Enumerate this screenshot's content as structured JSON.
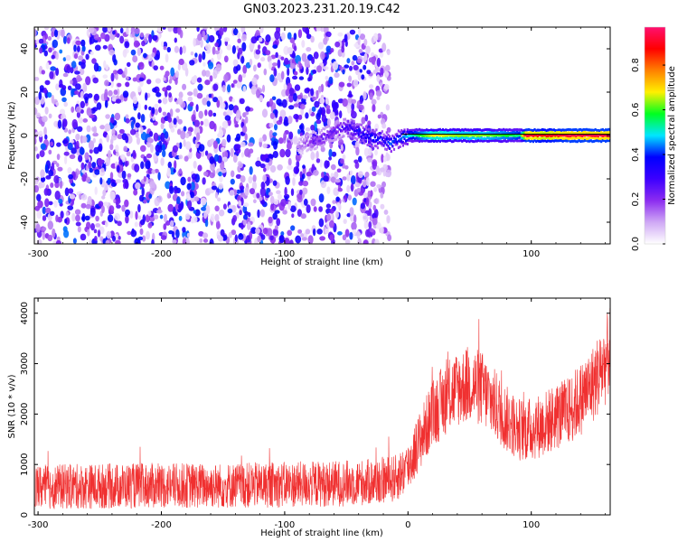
{
  "title": "GN03.2023.231.20.19.C42",
  "chart_data": [
    {
      "type": "heatmap",
      "xlabel": "Height of straight line (km)",
      "ylabel": "Frequency (Hz)",
      "xlim": [
        -303,
        164
      ],
      "ylim": [
        -50,
        50
      ],
      "x_ticks": [
        -300,
        -200,
        -100,
        0,
        100
      ],
      "x_tick_labels": [
        "-300",
        "-200",
        "-100",
        "0",
        "100"
      ],
      "y_ticks": [
        -40,
        -20,
        0,
        20,
        40
      ],
      "y_tick_labels": [
        "-40",
        "-20",
        "0",
        "20",
        "40"
      ],
      "colorbar": {
        "label": "Normalized spectral amplitude",
        "range": [
          0,
          0.97
        ],
        "ticks": [
          0,
          0.2,
          0.4,
          0.6,
          0.8
        ],
        "tick_labels": [
          "0.0",
          "0.2",
          "0.4",
          "0.6",
          "0.8"
        ],
        "colors": [
          "#ffffff",
          "#cfa8f5",
          "#8c2cf0",
          "#3c00ff",
          "#0000ff",
          "#00e6ff",
          "#00ff20",
          "#fff000",
          "#ff8000",
          "#ff0000",
          "#ff1070"
        ]
      },
      "noise_region": {
        "x_range": [
          -303,
          -15
        ],
        "freq_range": [
          -50,
          50
        ],
        "level": 0.15
      },
      "signal_track": {
        "x": [
          -90,
          -80,
          -70,
          -60,
          -50,
          -40,
          -30,
          -20,
          -15,
          -10,
          0,
          10,
          20,
          40,
          60,
          80,
          90,
          95,
          110,
          130,
          150,
          164
        ],
        "freq": [
          -5,
          -3,
          -1,
          2,
          4,
          1,
          -1,
          -2,
          -4,
          -2,
          0,
          0,
          0,
          0,
          0,
          0,
          0,
          0,
          0,
          0,
          0,
          0
        ],
        "amplitude": [
          0.12,
          0.2,
          0.25,
          0.25,
          0.3,
          0.35,
          0.4,
          0.35,
          0.45,
          0.4,
          0.5,
          0.6,
          0.7,
          0.65,
          0.65,
          0.6,
          0.55,
          0.95,
          0.9,
          0.95,
          0.95,
          0.95
        ]
      }
    },
    {
      "type": "line",
      "xlabel": "Height of straight line (km)",
      "ylabel": "SNR (10 * v/v)",
      "xlim": [
        -303,
        164
      ],
      "ylim": [
        0,
        4300
      ],
      "x_ticks": [
        -300,
        -200,
        -100,
        0,
        100
      ],
      "x_tick_labels": [
        "-300",
        "-200",
        "-100",
        "0",
        "100"
      ],
      "y_ticks": [
        0,
        1000,
        2000,
        3000,
        4000
      ],
      "y_tick_labels": [
        "0",
        "1000",
        "2000",
        "3000",
        "4000"
      ],
      "series": [
        {
          "color": "#f03030",
          "x": [
            -303,
            -280,
            -250,
            -200,
            -150,
            -100,
            -60,
            -30,
            -10,
            0,
            10,
            20,
            30,
            40,
            50,
            60,
            70,
            80,
            90,
            100,
            110,
            120,
            130,
            140,
            150,
            160,
            164
          ],
          "y": [
            550,
            560,
            570,
            580,
            580,
            600,
            620,
            650,
            720,
            950,
            1500,
            2000,
            2300,
            2500,
            2600,
            2500,
            2200,
            1900,
            1700,
            1700,
            1800,
            1950,
            2050,
            2300,
            2600,
            3000,
            3300
          ],
          "noise_amplitude": 650
        }
      ]
    }
  ]
}
